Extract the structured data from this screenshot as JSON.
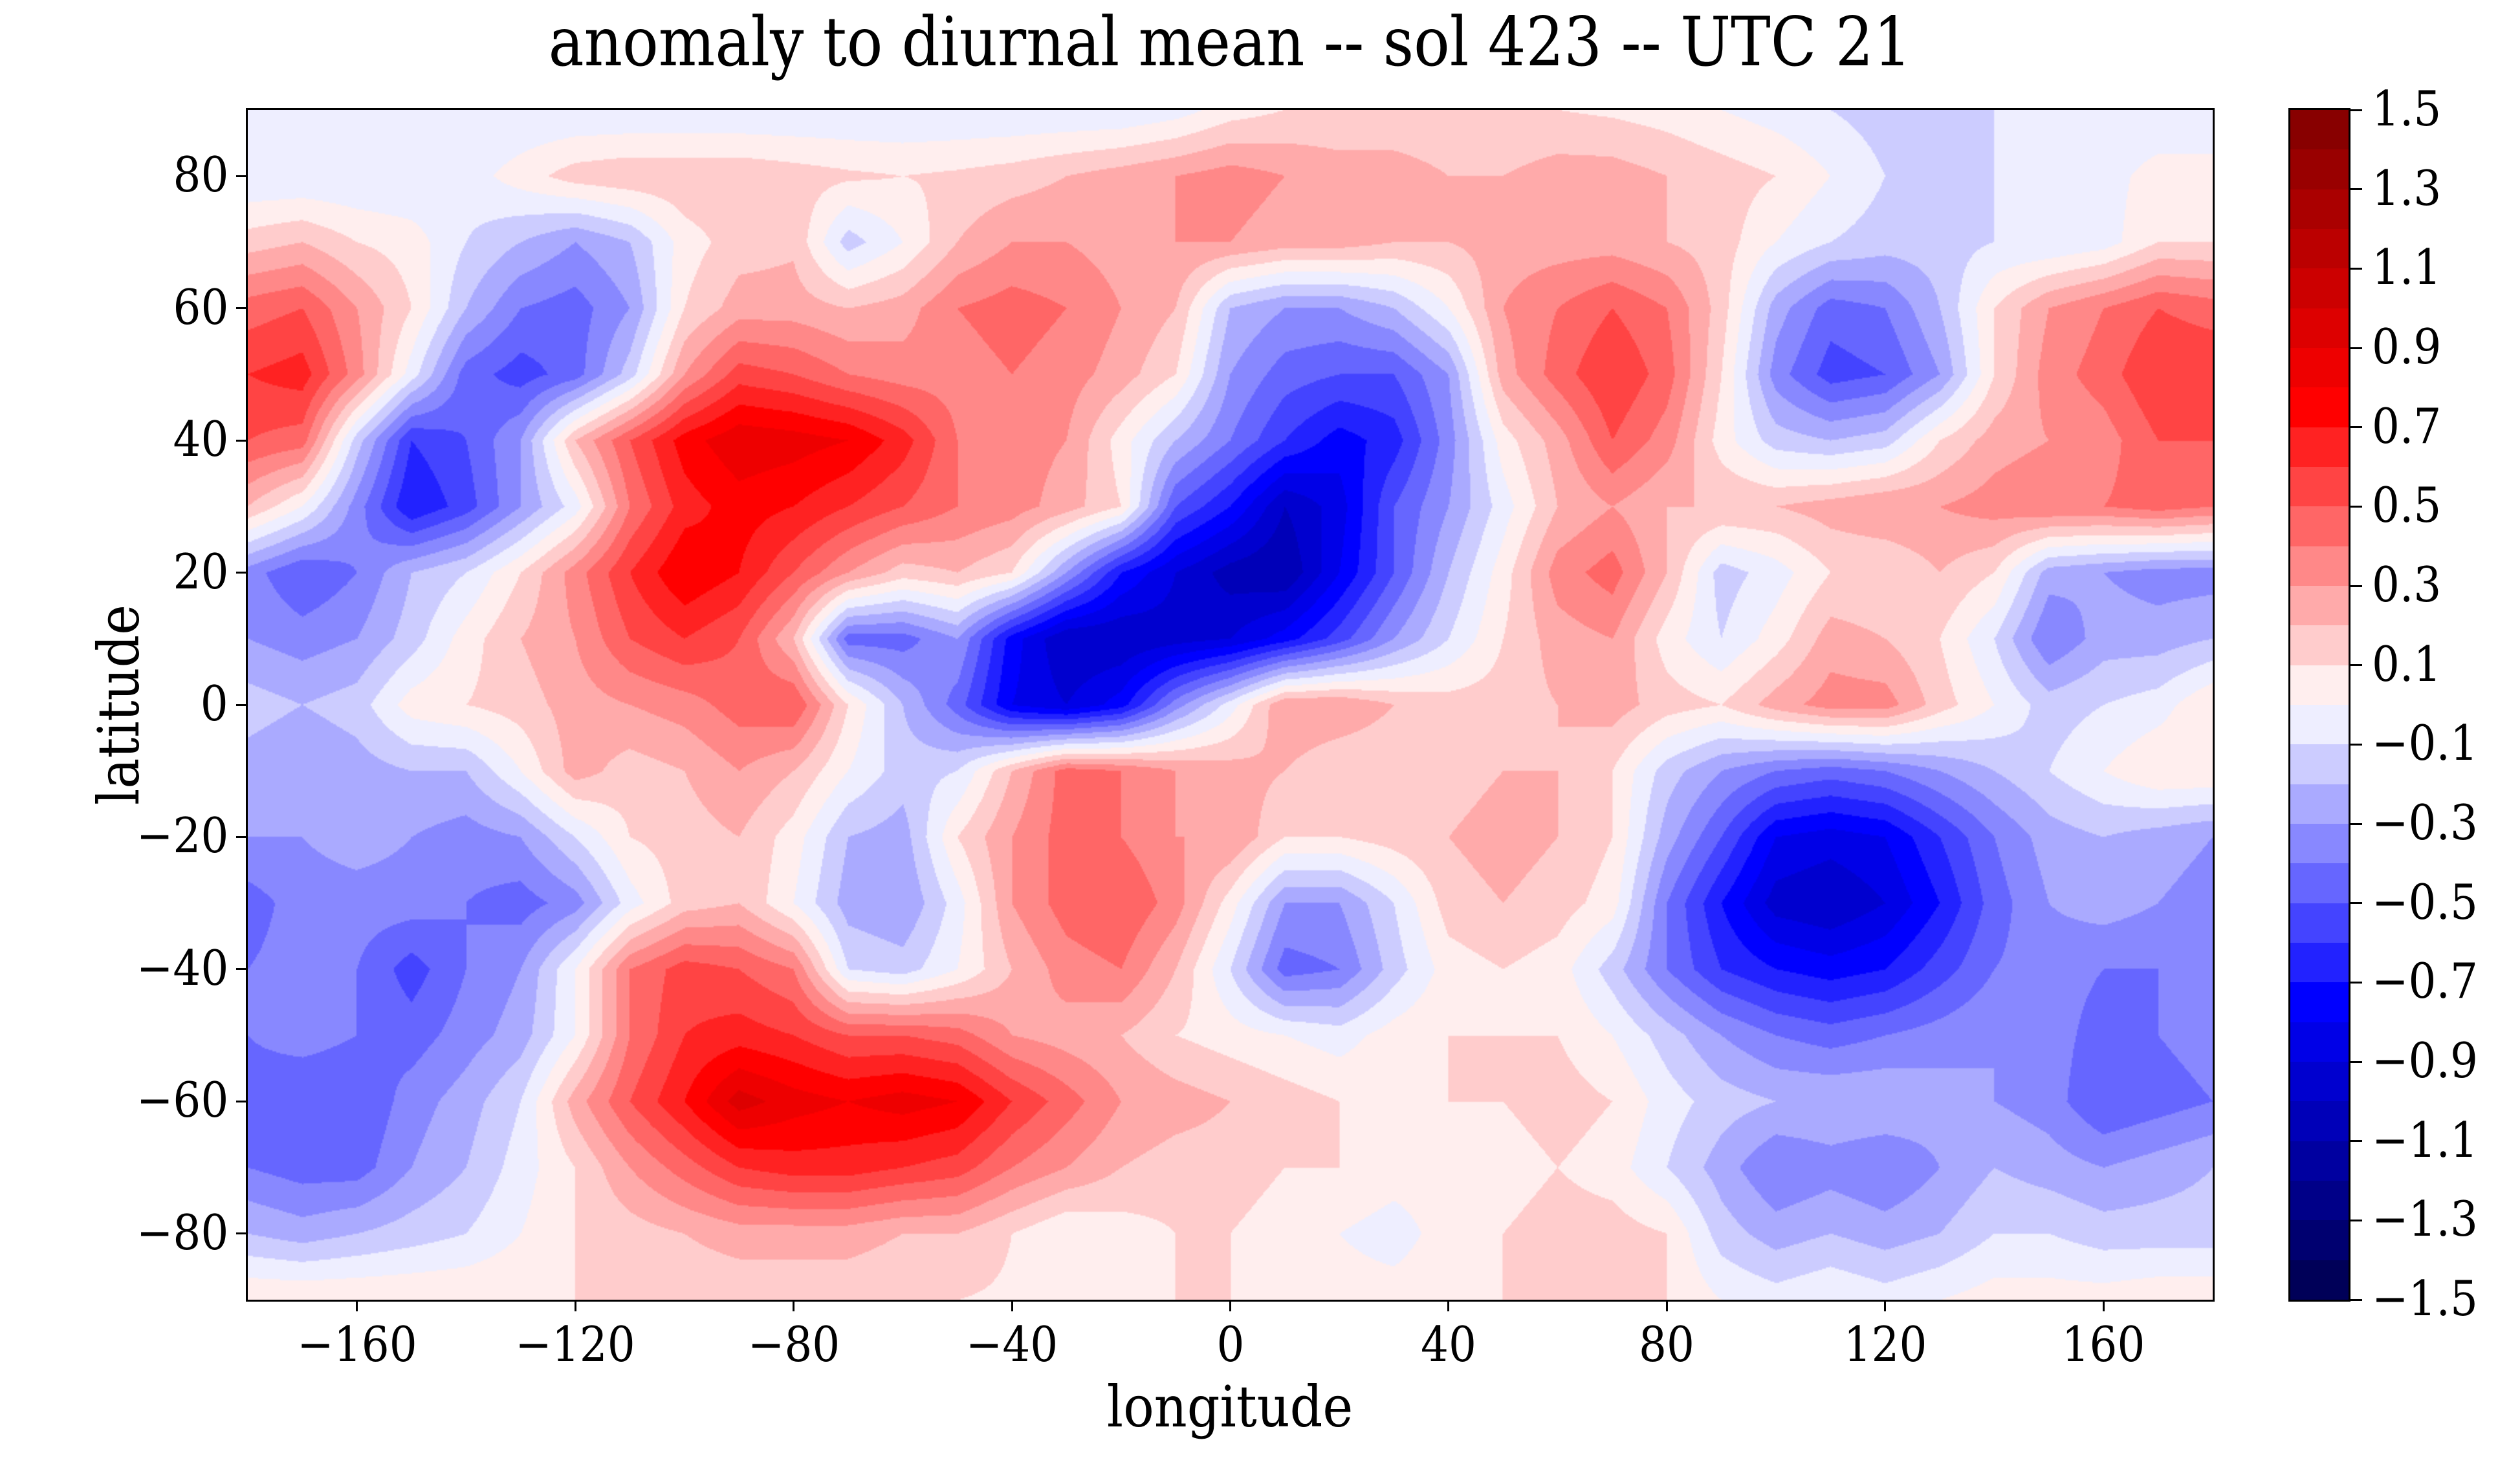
{
  "title": "anomaly to diurnal mean -- sol 423 -- UTC 21",
  "axes": {
    "xlabel": "longitude",
    "ylabel": "latitude",
    "xlim": [
      -180,
      180
    ],
    "ylim": [
      -90,
      90
    ],
    "x_tick_values": [
      -160,
      -120,
      -80,
      -40,
      0,
      40,
      80,
      120,
      160
    ],
    "x_tick_labels": [
      "−160",
      "−120",
      "−80",
      "−40",
      "0",
      "40",
      "80",
      "120",
      "160"
    ],
    "y_tick_values": [
      80,
      60,
      40,
      20,
      0,
      -20,
      -40,
      -60,
      -80
    ],
    "y_tick_labels": [
      "80",
      "60",
      "40",
      "20",
      "0",
      "−20",
      "−40",
      "−60",
      "−80"
    ]
  },
  "colorbar": {
    "vmin": -1.5,
    "vmax": 1.5,
    "band_step": 0.1,
    "tick_values": [
      1.5,
      1.3,
      1.1,
      0.9,
      0.7,
      0.5,
      0.3,
      0.1,
      -0.1,
      -0.3,
      -0.5,
      -0.7,
      -0.9,
      -1.1,
      -1.3,
      -1.5
    ],
    "tick_labels": [
      "1.5",
      "1.3",
      "1.1",
      "0.9",
      "0.7",
      "0.5",
      "0.3",
      "0.1",
      "−0.1",
      "−0.3",
      "−0.5",
      "−0.7",
      "−0.9",
      "−1.1",
      "−1.3",
      "−1.5"
    ],
    "band_colors": [
      "#000058",
      "#000070",
      "#000088",
      "#0000A0",
      "#0000B8",
      "#0000CF",
      "#0000E7",
      "#0000FF",
      "#2222FF",
      "#4444FF",
      "#6666FF",
      "#8888FF",
      "#AAAAFF",
      "#CCCCFF",
      "#EEEEFF",
      "#FFEEEE",
      "#FFCCCC",
      "#FFAAAA",
      "#FF8888",
      "#FF6666",
      "#FF4444",
      "#FF2222",
      "#FF0000",
      "#EE0000",
      "#DD0000",
      "#CC0000",
      "#BB0000",
      "#AA0000",
      "#990000",
      "#880000"
    ]
  },
  "chart_data": {
    "type": "filled_contour",
    "colormap": "seismic",
    "title": "anomaly to diurnal mean -- sol 423 -- UTC 21",
    "xlabel": "longitude",
    "ylabel": "latitude",
    "levels_min": -1.5,
    "levels_max": 1.5,
    "level_step": 0.1,
    "lon": [
      -180,
      -170,
      -160,
      -150,
      -140,
      -130,
      -120,
      -110,
      -100,
      -90,
      -80,
      -70,
      -60,
      -50,
      -40,
      -30,
      -20,
      -10,
      0,
      10,
      20,
      30,
      40,
      50,
      60,
      70,
      80,
      90,
      100,
      110,
      120,
      130,
      140,
      150,
      160,
      170,
      180
    ],
    "lat": [
      90,
      80,
      70,
      60,
      50,
      40,
      30,
      20,
      10,
      0,
      -10,
      -20,
      -30,
      -40,
      -50,
      -60,
      -70,
      -80,
      -90
    ],
    "values": [
      [
        -0.1,
        -0.1,
        -0.1,
        -0.1,
        -0.1,
        -0.1,
        -0.1,
        -0.1,
        -0.1,
        -0.1,
        -0.1,
        -0.1,
        -0.1,
        -0.1,
        -0.1,
        -0.1,
        -0.1,
        -0.05,
        0.05,
        0.1,
        0.12,
        0.12,
        0.12,
        0.1,
        0.1,
        0.08,
        0.05,
        0.0,
        -0.05,
        -0.1,
        -0.15,
        -0.15,
        -0.1,
        -0.1,
        -0.08,
        -0.1,
        -0.1
      ],
      [
        -0.1,
        -0.1,
        -0.1,
        -0.1,
        -0.05,
        0.05,
        0.15,
        0.18,
        0.18,
        0.18,
        0.15,
        0.12,
        0.1,
        0.12,
        0.15,
        0.2,
        0.25,
        0.3,
        0.35,
        0.3,
        0.25,
        0.25,
        0.2,
        0.2,
        0.25,
        0.25,
        0.2,
        0.15,
        0.1,
        0.0,
        -0.1,
        -0.15,
        -0.1,
        -0.05,
        -0.05,
        0.05,
        0.05
      ],
      [
        0.15,
        0.2,
        0.1,
        0.05,
        -0.1,
        -0.2,
        -0.3,
        -0.2,
        0.05,
        0.15,
        0.18,
        -0.15,
        0.0,
        0.2,
        0.3,
        0.3,
        0.25,
        0.3,
        0.3,
        0.25,
        0.25,
        0.2,
        0.2,
        0.25,
        0.25,
        0.25,
        0.2,
        0.15,
        0.0,
        -0.1,
        -0.15,
        -0.15,
        -0.1,
        -0.1,
        -0.05,
        0.1,
        0.1
      ],
      [
        0.45,
        0.5,
        0.3,
        0.1,
        -0.2,
        -0.4,
        -0.45,
        -0.3,
        0.1,
        0.25,
        0.25,
        0.2,
        0.25,
        0.4,
        0.45,
        0.4,
        0.3,
        0.2,
        -0.2,
        -0.3,
        -0.3,
        -0.2,
        0.0,
        0.3,
        0.4,
        0.5,
        0.4,
        0.15,
        -0.25,
        -0.45,
        -0.4,
        -0.2,
        0.1,
        0.3,
        0.4,
        0.5,
        0.45
      ],
      [
        0.6,
        0.65,
        0.35,
        -0.05,
        -0.45,
        -0.55,
        -0.45,
        -0.15,
        0.3,
        0.55,
        0.5,
        0.4,
        0.35,
        0.35,
        0.4,
        0.35,
        0.25,
        0.1,
        -0.3,
        -0.45,
        -0.5,
        -0.5,
        -0.3,
        0.25,
        0.45,
        0.6,
        0.45,
        0.1,
        -0.35,
        -0.55,
        -0.5,
        -0.3,
        0.1,
        0.35,
        0.45,
        0.6,
        0.6
      ],
      [
        0.5,
        0.45,
        -0.15,
        -0.6,
        -0.5,
        -0.3,
        0.2,
        0.5,
        0.75,
        0.88,
        0.85,
        0.8,
        0.65,
        0.4,
        0.35,
        0.3,
        0.05,
        -0.2,
        -0.4,
        -0.6,
        -0.75,
        -0.65,
        -0.35,
        0.05,
        0.25,
        0.5,
        0.35,
        0.05,
        -0.15,
        -0.2,
        -0.15,
        0.1,
        0.25,
        0.3,
        0.35,
        0.5,
        0.5
      ],
      [
        0.2,
        0.0,
        -0.35,
        -0.7,
        -0.55,
        -0.3,
        -0.05,
        0.4,
        0.65,
        0.75,
        0.7,
        0.6,
        0.5,
        0.4,
        0.35,
        0.25,
        0.1,
        -0.5,
        -0.7,
        -1.0,
        -0.85,
        -0.5,
        -0.3,
        -0.05,
        0.2,
        0.3,
        0.2,
        0.2,
        0.2,
        0.25,
        0.3,
        0.3,
        0.35,
        0.4,
        0.4,
        0.45,
        0.4
      ],
      [
        -0.35,
        -0.5,
        -0.4,
        -0.2,
        -0.1,
        0.1,
        0.35,
        0.6,
        0.8,
        0.7,
        0.5,
        0.3,
        0.15,
        0.2,
        0.1,
        -0.3,
        -0.7,
        -0.9,
        -1.05,
        -1.1,
        -0.8,
        -0.5,
        -0.2,
        0.05,
        0.35,
        0.45,
        0.2,
        -0.15,
        -0.05,
        0.1,
        0.1,
        0.2,
        0.1,
        -0.25,
        -0.3,
        -0.35,
        -0.35
      ],
      [
        -0.3,
        -0.35,
        -0.3,
        -0.15,
        0.05,
        0.2,
        0.3,
        0.5,
        0.6,
        0.5,
        0.2,
        -0.45,
        -0.45,
        -0.3,
        -0.75,
        -1.0,
        -1.0,
        -0.95,
        -0.9,
        -0.75,
        -0.55,
        -0.3,
        -0.1,
        0.1,
        0.25,
        0.3,
        0.05,
        -0.1,
        0.05,
        0.25,
        0.2,
        0.1,
        -0.1,
        -0.4,
        -0.25,
        -0.25,
        -0.2
      ],
      [
        -0.15,
        -0.2,
        -0.15,
        0.05,
        0.1,
        0.15,
        0.25,
        0.3,
        0.35,
        0.45,
        0.5,
        0.1,
        -0.2,
        -0.45,
        -0.8,
        -0.9,
        -0.75,
        -0.35,
        -0.05,
        0.3,
        0.3,
        0.2,
        0.15,
        0.15,
        0.2,
        0.25,
        0.15,
        0.1,
        0.25,
        0.35,
        0.35,
        0.15,
        0.0,
        -0.15,
        -0.1,
        -0.05,
        0.1
      ],
      [
        -0.25,
        -0.3,
        -0.25,
        -0.2,
        -0.2,
        0.0,
        0.25,
        0.15,
        0.2,
        0.3,
        0.2,
        0.0,
        -0.15,
        -0.1,
        0.2,
        0.45,
        0.4,
        0.3,
        0.25,
        0.2,
        0.1,
        0.1,
        0.15,
        0.2,
        0.2,
        0.1,
        -0.15,
        -0.3,
        -0.4,
        -0.45,
        -0.4,
        -0.3,
        -0.2,
        -0.1,
        0.0,
        0.1,
        0.1
      ],
      [
        -0.3,
        -0.3,
        -0.25,
        -0.3,
        -0.35,
        -0.3,
        -0.1,
        0.1,
        0.15,
        0.2,
        0.05,
        -0.2,
        -0.25,
        0.1,
        0.3,
        0.45,
        0.4,
        0.3,
        0.3,
        0.1,
        0.1,
        0.15,
        0.2,
        0.25,
        0.2,
        0.1,
        -0.25,
        -0.5,
        -0.8,
        -0.85,
        -0.8,
        -0.6,
        -0.4,
        -0.25,
        -0.2,
        -0.25,
        -0.3
      ],
      [
        -0.45,
        -0.35,
        -0.35,
        -0.35,
        -0.4,
        -0.45,
        -0.35,
        -0.05,
        0.15,
        0.2,
        0.0,
        -0.25,
        -0.3,
        -0.05,
        0.3,
        0.45,
        0.5,
        0.35,
        0.05,
        -0.3,
        -0.3,
        -0.1,
        0.15,
        0.2,
        0.15,
        0.05,
        -0.4,
        -0.7,
        -0.95,
        -1.0,
        -0.9,
        -0.7,
        -0.45,
        -0.3,
        -0.25,
        -0.3,
        -0.35
      ],
      [
        -0.4,
        -0.35,
        -0.4,
        -0.55,
        -0.4,
        -0.3,
        0.0,
        0.4,
        0.55,
        0.5,
        0.4,
        -0.1,
        -0.15,
        0.0,
        0.2,
        0.35,
        0.4,
        0.2,
        -0.1,
        -0.45,
        -0.4,
        -0.15,
        0.05,
        0.1,
        0.05,
        -0.15,
        -0.4,
        -0.6,
        -0.7,
        -0.75,
        -0.7,
        -0.55,
        -0.4,
        -0.35,
        -0.4,
        -0.4,
        -0.4
      ],
      [
        -0.4,
        -0.35,
        -0.4,
        -0.45,
        -0.35,
        -0.25,
        0.0,
        0.4,
        0.6,
        0.65,
        0.6,
        0.5,
        0.5,
        0.45,
        0.3,
        0.25,
        0.2,
        0.1,
        0.05,
        0.0,
        -0.05,
        0.05,
        0.1,
        0.1,
        0.1,
        0.0,
        -0.15,
        -0.3,
        -0.4,
        -0.45,
        -0.4,
        -0.35,
        -0.3,
        -0.35,
        -0.45,
        -0.4,
        -0.35
      ],
      [
        -0.45,
        -0.5,
        -0.5,
        -0.35,
        -0.25,
        -0.1,
        0.25,
        0.5,
        0.7,
        0.95,
        0.85,
        0.8,
        0.85,
        0.8,
        0.6,
        0.45,
        0.3,
        0.25,
        0.2,
        0.15,
        0.1,
        0.1,
        0.1,
        0.1,
        0.15,
        0.1,
        -0.05,
        -0.15,
        -0.2,
        -0.2,
        -0.2,
        -0.25,
        -0.3,
        -0.35,
        -0.5,
        -0.45,
        -0.4
      ],
      [
        -0.4,
        -0.45,
        -0.45,
        -0.3,
        -0.2,
        -0.05,
        0.1,
        0.3,
        0.45,
        0.6,
        0.65,
        0.65,
        0.6,
        0.55,
        0.4,
        0.3,
        0.2,
        0.15,
        0.15,
        0.1,
        0.1,
        0.05,
        0.05,
        0.05,
        0.1,
        0.05,
        -0.1,
        -0.25,
        -0.4,
        -0.35,
        -0.4,
        -0.3,
        -0.2,
        -0.25,
        -0.3,
        -0.25,
        -0.2
      ],
      [
        -0.2,
        -0.25,
        -0.2,
        -0.15,
        -0.1,
        0.0,
        0.1,
        0.15,
        0.2,
        0.25,
        0.25,
        0.25,
        0.2,
        0.2,
        0.1,
        0.0,
        0.05,
        0.1,
        0.1,
        0.05,
        0.0,
        -0.05,
        0.05,
        0.1,
        0.15,
        0.15,
        0.1,
        -0.15,
        -0.25,
        -0.2,
        -0.25,
        -0.2,
        -0.1,
        -0.1,
        -0.15,
        -0.15,
        -0.15
      ],
      [
        0.1,
        0.1,
        0.1,
        0.1,
        0.1,
        0.1,
        0.1,
        0.1,
        0.12,
        0.12,
        0.12,
        0.12,
        0.1,
        0.1,
        0.08,
        0.05,
        0.08,
        0.1,
        0.1,
        0.08,
        0.05,
        0.05,
        0.08,
        0.1,
        0.12,
        0.12,
        0.1,
        0.0,
        -0.05,
        0.0,
        -0.05,
        0.0,
        0.05,
        0.05,
        0.05,
        0.08,
        0.08
      ]
    ]
  }
}
